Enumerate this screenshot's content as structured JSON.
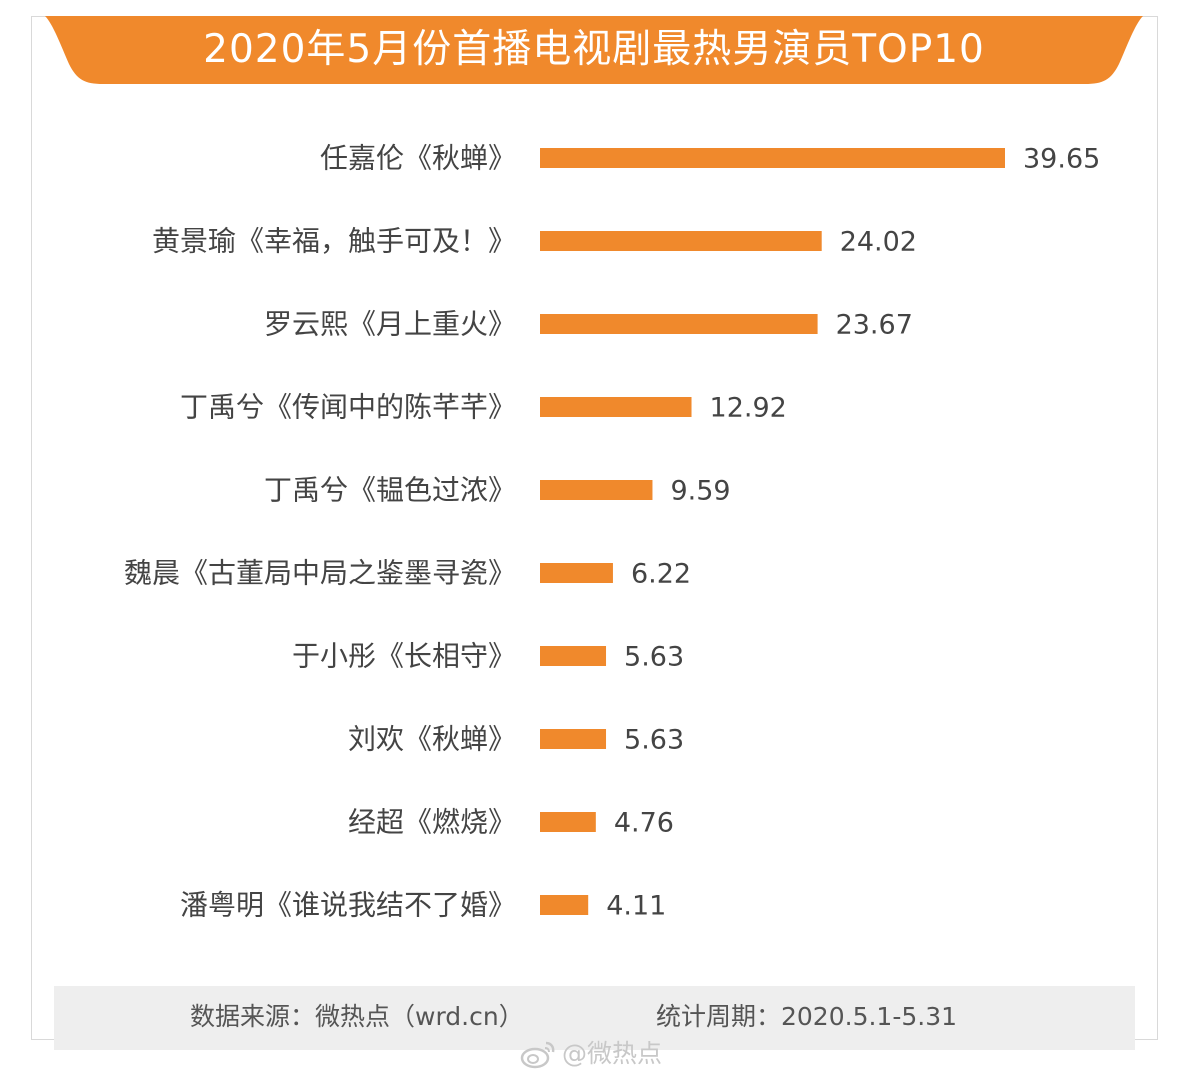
{
  "colors": {
    "accent": "#f0892c",
    "banner": "#f0892c",
    "label": "#444444",
    "value": "#444444",
    "footer_bg": "#eeeeee"
  },
  "chart_data": {
    "type": "bar",
    "orientation": "horizontal",
    "title": "2020年5月份首播电视剧最热男演员TOP10",
    "categories": [
      "任嘉伦《秋蝉》",
      "黄景瑜《幸福，触手可及！》",
      "罗云熙《月上重火》",
      "丁禹兮《传闻中的陈芊芊》",
      "丁禹兮《韫色过浓》",
      "魏晨《古董局中局之鉴墨寻瓷》",
      "于小彤《长相守》",
      "刘欢《秋蝉》",
      "经超《燃烧》",
      "潘粤明《谁说我结不了婚》"
    ],
    "values": [
      39.65,
      24.02,
      23.67,
      12.92,
      9.59,
      6.22,
      5.63,
      5.63,
      4.76,
      4.11
    ],
    "value_labels": [
      "39.65",
      "24.02",
      "23.67",
      "12.92",
      "9.59",
      "6.22",
      "5.63",
      "5.63",
      "4.76",
      "4.11"
    ],
    "xlim": [
      0,
      39.65
    ],
    "grid": false,
    "legend": "none"
  },
  "footer": {
    "source": "数据来源：微热点（wrd.cn）",
    "period": "统计周期：2020.5.1-5.31"
  },
  "watermark": {
    "text": "@微热点",
    "icon": "weibo-icon"
  }
}
